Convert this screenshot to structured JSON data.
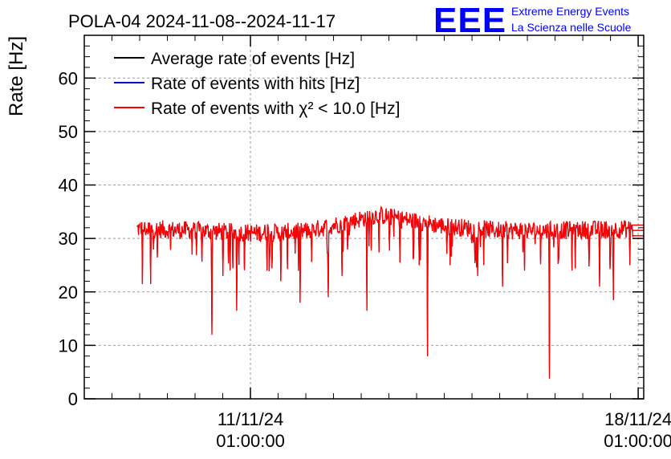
{
  "chart_data": {
    "type": "line",
    "title": "POLA-04 2024-11-08--2024-11-17",
    "xlabel": "",
    "ylabel": "Rate [Hz]",
    "ylim": [
      0,
      68
    ],
    "yticks": [
      0,
      10,
      20,
      30,
      40,
      50,
      60
    ],
    "grid": true,
    "legend_position": "top-left",
    "xlim_days": [
      0,
      10.1
    ],
    "x_unit": "days since 2024-11-08 01:00:00",
    "xticks": [
      {
        "x": 3,
        "date": "11/11/24",
        "time": "01:00:00"
      },
      {
        "x": 10,
        "date": "18/11/24",
        "time": "01:00:00"
      }
    ],
    "series": [
      {
        "name": "Average rate of events [Hz]",
        "color": "#000000",
        "x": [
          0.95,
          2,
          3,
          4,
          5.3,
          6.5,
          7.5,
          8.5,
          9.9
        ],
        "values": [
          31.8,
          31.5,
          31.0,
          31.3,
          34.4,
          32.3,
          31.5,
          31.5,
          31.8
        ]
      },
      {
        "name": "Rate of events with hits [Hz]",
        "color": "#0000cc",
        "x": [
          0.95,
          2,
          3,
          4,
          5.3,
          6.5,
          7.5,
          8.5,
          9.9
        ],
        "values": [
          31.8,
          31.5,
          31.0,
          31.3,
          34.4,
          32.3,
          31.5,
          31.5,
          31.8
        ]
      },
      {
        "name": "Rate of events with χ² < 10.0 [Hz]",
        "color": "#ff0000",
        "x": [
          0.95,
          2,
          3,
          4,
          5.3,
          6.5,
          7.5,
          8.5,
          9.9
        ],
        "values": [
          31.8,
          31.5,
          31.0,
          31.3,
          34.4,
          32.3,
          31.5,
          31.5,
          31.8
        ]
      }
    ],
    "dips": [
      {
        "x": 1.05,
        "value": 21.5
      },
      {
        "x": 1.2,
        "value": 21.5
      },
      {
        "x": 1.95,
        "value": 27.0
      },
      {
        "x": 2.3,
        "value": 12.0
      },
      {
        "x": 2.5,
        "value": 23.0
      },
      {
        "x": 2.75,
        "value": 16.5
      },
      {
        "x": 3.3,
        "value": 24.0
      },
      {
        "x": 3.55,
        "value": 22.0
      },
      {
        "x": 3.9,
        "value": 18.0
      },
      {
        "x": 4.4,
        "value": 19.0
      },
      {
        "x": 4.65,
        "value": 23.0
      },
      {
        "x": 5.1,
        "value": 16.5
      },
      {
        "x": 5.7,
        "value": 25.5
      },
      {
        "x": 6.05,
        "value": 25.0
      },
      {
        "x": 6.2,
        "value": 8.0
      },
      {
        "x": 6.6,
        "value": 25.0
      },
      {
        "x": 7.1,
        "value": 23.0
      },
      {
        "x": 7.55,
        "value": 21.0
      },
      {
        "x": 7.95,
        "value": 24.0
      },
      {
        "x": 8.4,
        "value": 3.8
      },
      {
        "x": 8.8,
        "value": 24.0
      },
      {
        "x": 9.3,
        "value": 21.0
      },
      {
        "x": 9.55,
        "value": 18.5
      },
      {
        "x": 9.85,
        "value": 25.0
      }
    ],
    "tail_levels": [
      30.5,
      31.5,
      32.5
    ]
  },
  "logo": {
    "mark": "EEE",
    "line1": "Extreme Energy Events",
    "line2": "La Scienza nelle Scuole",
    "color": "#0000ff"
  }
}
